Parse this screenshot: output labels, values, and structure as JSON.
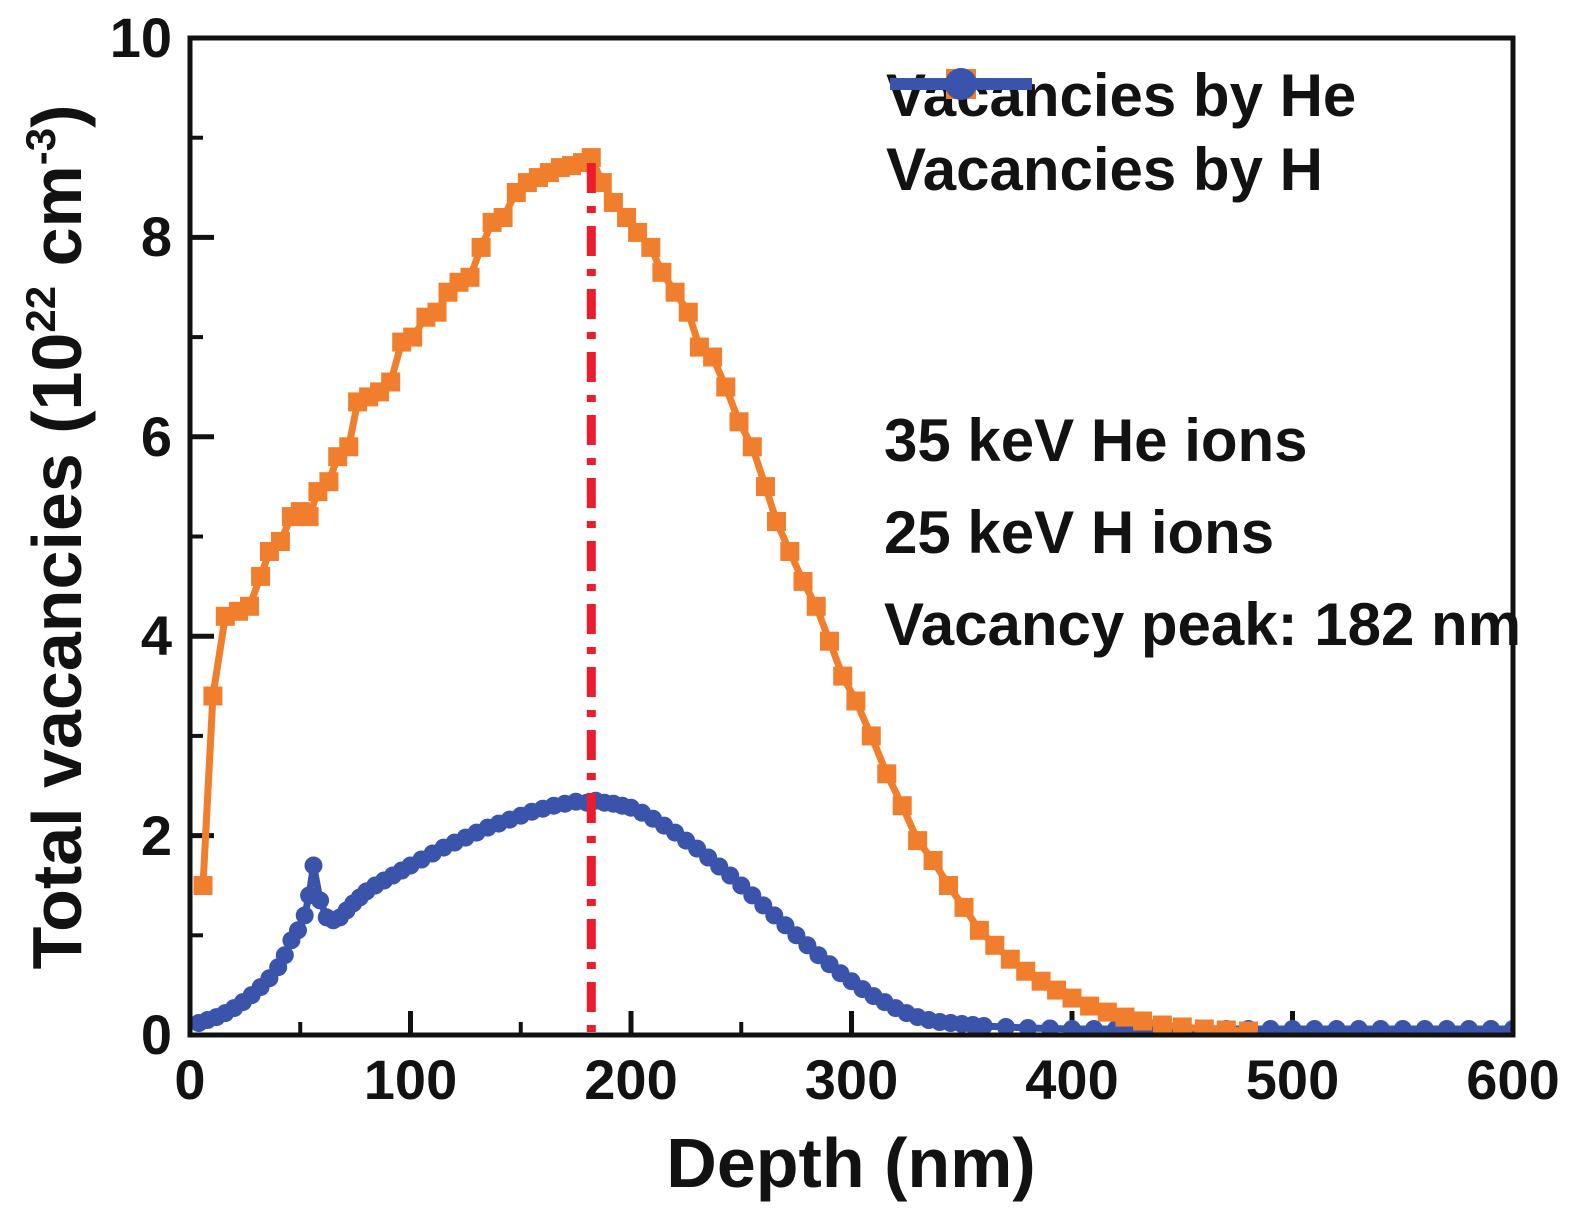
{
  "figure": {
    "background": "#ffffff",
    "text_color": "#121212",
    "frame_color": "#111111"
  },
  "chart_data": {
    "type": "line",
    "title": "",
    "xlabel": "Depth (nm)",
    "ylabel": "Total vacancies (10^22 cm^-3)",
    "ylabel_parts": {
      "prefix": "Total vacancies (10",
      "sup1": "22",
      "mid": " cm",
      "sup2": "-3",
      "suffix": ")"
    },
    "xlim": [
      0,
      600
    ],
    "ylim": [
      0,
      10
    ],
    "x_ticks": [
      0,
      100,
      200,
      300,
      400,
      500,
      600
    ],
    "x_minor_ticks": [
      50,
      150,
      250,
      350,
      450,
      550
    ],
    "y_ticks": [
      0,
      2,
      4,
      6,
      8,
      10
    ],
    "y_minor_ticks": [
      1,
      3,
      5,
      7,
      9
    ],
    "grid": false,
    "legend_position": "top-right-inside",
    "annotations": [
      "35 keV He ions",
      "25 keV H ions",
      "Vacancy peak: 182 nm"
    ],
    "vline": {
      "x": 182,
      "color": "#EC1C2C",
      "style": "dash-dot"
    },
    "series": [
      {
        "name": "Vacancies by He",
        "color": "#F07E2C",
        "marker": "square",
        "points": [
          [
            5.9,
            1.5
          ],
          [
            10.4,
            3.4
          ],
          [
            16,
            4.2
          ],
          [
            22,
            4.25
          ],
          [
            27,
            4.3
          ],
          [
            32,
            4.6
          ],
          [
            36,
            4.85
          ],
          [
            41,
            4.95
          ],
          [
            46,
            5.2
          ],
          [
            50,
            5.25
          ],
          [
            54,
            5.2
          ],
          [
            58,
            5.45
          ],
          [
            63,
            5.55
          ],
          [
            67,
            5.8
          ],
          [
            72,
            5.9
          ],
          [
            76,
            6.35
          ],
          [
            81,
            6.4
          ],
          [
            86,
            6.45
          ],
          [
            91,
            6.55
          ],
          [
            96,
            6.95
          ],
          [
            101,
            7.0
          ],
          [
            107,
            7.2
          ],
          [
            112,
            7.25
          ],
          [
            117,
            7.45
          ],
          [
            122,
            7.55
          ],
          [
            127,
            7.6
          ],
          [
            132,
            7.9
          ],
          [
            137,
            8.15
          ],
          [
            142,
            8.2
          ],
          [
            148,
            8.45
          ],
          [
            153,
            8.55
          ],
          [
            158,
            8.6
          ],
          [
            163,
            8.65
          ],
          [
            168,
            8.7
          ],
          [
            173,
            8.72
          ],
          [
            178,
            8.75
          ],
          [
            182,
            8.8
          ],
          [
            187,
            8.55
          ],
          [
            192,
            8.35
          ],
          [
            198,
            8.2
          ],
          [
            203,
            8.05
          ],
          [
            209,
            7.9
          ],
          [
            214,
            7.65
          ],
          [
            220,
            7.45
          ],
          [
            226,
            7.25
          ],
          [
            231,
            6.9
          ],
          [
            237,
            6.8
          ],
          [
            243,
            6.5
          ],
          [
            249,
            6.15
          ],
          [
            255,
            5.9
          ],
          [
            261,
            5.5
          ],
          [
            266,
            5.15
          ],
          [
            272,
            4.85
          ],
          [
            278,
            4.55
          ],
          [
            284,
            4.3
          ],
          [
            290,
            3.95
          ],
          [
            296,
            3.6
          ],
          [
            302,
            3.35
          ],
          [
            309,
            3.0
          ],
          [
            316,
            2.62
          ],
          [
            323,
            2.3
          ],
          [
            330,
            1.95
          ],
          [
            337,
            1.75
          ],
          [
            344,
            1.5
          ],
          [
            351,
            1.28
          ],
          [
            358,
            1.05
          ],
          [
            365,
            0.9
          ],
          [
            372,
            0.76
          ],
          [
            379,
            0.64
          ],
          [
            386,
            0.54
          ],
          [
            393,
            0.45
          ],
          [
            400,
            0.37
          ],
          [
            408,
            0.29
          ],
          [
            416,
            0.23
          ],
          [
            424,
            0.18
          ],
          [
            432,
            0.14
          ],
          [
            441,
            0.1
          ],
          [
            450,
            0.08
          ],
          [
            460,
            0.06
          ],
          [
            470,
            0.05
          ],
          [
            480,
            0.04
          ]
        ]
      },
      {
        "name": "Vacancies by H",
        "color": "#3A54AB",
        "marker": "circle",
        "points": [
          [
            4,
            0.12
          ],
          [
            8,
            0.15
          ],
          [
            12,
            0.18
          ],
          [
            16,
            0.22
          ],
          [
            20,
            0.27
          ],
          [
            24,
            0.33
          ],
          [
            28,
            0.4
          ],
          [
            32,
            0.48
          ],
          [
            36,
            0.57
          ],
          [
            40,
            0.68
          ],
          [
            43,
            0.8
          ],
          [
            46,
            0.95
          ],
          [
            49,
            1.05
          ],
          [
            52,
            1.2
          ],
          [
            54,
            1.4
          ],
          [
            56,
            1.7
          ],
          [
            59,
            1.35
          ],
          [
            62,
            1.18
          ],
          [
            65,
            1.15
          ],
          [
            68,
            1.18
          ],
          [
            71,
            1.25
          ],
          [
            74,
            1.32
          ],
          [
            77,
            1.38
          ],
          [
            80,
            1.44
          ],
          [
            84,
            1.5
          ],
          [
            88,
            1.55
          ],
          [
            92,
            1.6
          ],
          [
            96,
            1.65
          ],
          [
            100,
            1.7
          ],
          [
            105,
            1.76
          ],
          [
            110,
            1.82
          ],
          [
            115,
            1.88
          ],
          [
            120,
            1.93
          ],
          [
            125,
            1.98
          ],
          [
            130,
            2.03
          ],
          [
            135,
            2.08
          ],
          [
            140,
            2.12
          ],
          [
            145,
            2.16
          ],
          [
            150,
            2.2
          ],
          [
            155,
            2.24
          ],
          [
            160,
            2.27
          ],
          [
            165,
            2.3
          ],
          [
            170,
            2.32
          ],
          [
            175,
            2.34
          ],
          [
            180,
            2.33
          ],
          [
            184,
            2.35
          ],
          [
            188,
            2.33
          ],
          [
            192,
            2.32
          ],
          [
            196,
            2.3
          ],
          [
            200,
            2.28
          ],
          [
            205,
            2.23
          ],
          [
            210,
            2.17
          ],
          [
            215,
            2.1
          ],
          [
            220,
            2.03
          ],
          [
            225,
            1.95
          ],
          [
            230,
            1.87
          ],
          [
            235,
            1.78
          ],
          [
            240,
            1.69
          ],
          [
            245,
            1.6
          ],
          [
            250,
            1.5
          ],
          [
            255,
            1.4
          ],
          [
            260,
            1.3
          ],
          [
            265,
            1.2
          ],
          [
            270,
            1.1
          ],
          [
            275,
            1.0
          ],
          [
            280,
            0.9
          ],
          [
            285,
            0.8
          ],
          [
            290,
            0.71
          ],
          [
            295,
            0.62
          ],
          [
            300,
            0.54
          ],
          [
            305,
            0.46
          ],
          [
            310,
            0.39
          ],
          [
            315,
            0.33
          ],
          [
            320,
            0.27
          ],
          [
            325,
            0.22
          ],
          [
            330,
            0.18
          ],
          [
            335,
            0.15
          ],
          [
            340,
            0.13
          ],
          [
            345,
            0.12
          ],
          [
            350,
            0.11
          ],
          [
            355,
            0.1
          ],
          [
            360,
            0.09
          ],
          [
            370,
            0.08
          ],
          [
            380,
            0.07
          ],
          [
            390,
            0.065
          ],
          [
            400,
            0.06
          ],
          [
            410,
            0.06
          ],
          [
            420,
            0.06
          ],
          [
            430,
            0.06
          ],
          [
            440,
            0.06
          ],
          [
            450,
            0.06
          ],
          [
            460,
            0.06
          ],
          [
            470,
            0.06
          ],
          [
            480,
            0.06
          ],
          [
            490,
            0.06
          ],
          [
            500,
            0.06
          ],
          [
            510,
            0.06
          ],
          [
            520,
            0.06
          ],
          [
            530,
            0.06
          ],
          [
            540,
            0.06
          ],
          [
            550,
            0.06
          ],
          [
            560,
            0.06
          ],
          [
            570,
            0.06
          ],
          [
            580,
            0.06
          ],
          [
            590,
            0.06
          ],
          [
            600,
            0.06
          ]
        ]
      }
    ]
  }
}
